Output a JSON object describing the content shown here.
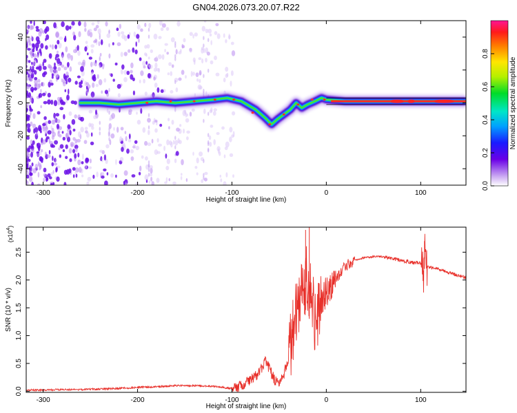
{
  "title": "GN04.2026.073.20.07.R22",
  "chart_data": [
    {
      "type": "heatmap",
      "xlabel": "Height of straight line (km)",
      "ylabel": "Frequency (Hz)",
      "xlim": [
        -318,
        148
      ],
      "ylim": [
        -50,
        50
      ],
      "x_ticks": [
        -300,
        -200,
        -100,
        0,
        100
      ],
      "y_ticks": [
        -40,
        -20,
        0,
        20,
        40
      ],
      "colorbar": {
        "label": "Normalized spectral amplitude",
        "range": [
          0,
          1
        ],
        "ticks": [
          "0.0",
          "0.2",
          "0.4",
          "0.6",
          "0.8"
        ]
      },
      "ridge": {
        "x": [
          -262,
          -240,
          -220,
          -200,
          -180,
          -160,
          -140,
          -120,
          -105,
          -90,
          -75,
          -65,
          -58,
          -52,
          -45,
          -38,
          -32,
          -26,
          -20,
          -12,
          -5,
          0,
          20,
          60,
          100,
          148
        ],
        "y": [
          0,
          0,
          -1,
          0,
          1,
          0,
          1,
          2,
          3,
          1,
          -4,
          -9,
          -13,
          -10,
          -7,
          -4,
          0,
          -3,
          -1,
          1,
          3,
          2,
          1,
          1,
          1,
          1
        ]
      }
    },
    {
      "type": "line",
      "xlabel": "Height of straight line (km)",
      "ylabel": "SNR (10 * v/v)",
      "y_multiplier": "(x10",
      "y_multiplier_exp": "4",
      "y_multiplier_close": ")",
      "xlim": [
        -318,
        148
      ],
      "ylim": [
        -0.02,
        2.95
      ],
      "x_ticks": [
        -300,
        -200,
        -100,
        0,
        100
      ],
      "y_ticks": [
        "0.0",
        "0.5",
        "1.0",
        "1.5",
        "2.0",
        "2.5"
      ],
      "line_color": "#e8302a",
      "series": [
        {
          "x": [
            -318,
            -300,
            -280,
            -260,
            -240,
            -220,
            -200,
            -180,
            -160,
            -140,
            -120,
            -100,
            -90,
            -80,
            -70,
            -65,
            -60,
            -55,
            -50,
            -45,
            -40,
            -35,
            -30,
            -25,
            -20,
            -15,
            -10,
            -5,
            0,
            10,
            20,
            30,
            40,
            50,
            60,
            70,
            80,
            90,
            100,
            103,
            104,
            106,
            110,
            120,
            130,
            140,
            148
          ],
          "y": [
            0.02,
            0.02,
            0.03,
            0.03,
            0.04,
            0.05,
            0.07,
            0.08,
            0.1,
            0.1,
            0.09,
            0.05,
            0.1,
            0.2,
            0.35,
            0.55,
            0.4,
            0.2,
            0.15,
            0.3,
            0.6,
            1.1,
            1.6,
            1.9,
            2.0,
            1.5,
            1.2,
            1.6,
            1.8,
            2.0,
            2.25,
            2.35,
            2.4,
            2.42,
            2.42,
            2.38,
            2.35,
            2.32,
            2.3,
            2.1,
            2.7,
            2.25,
            2.22,
            2.18,
            2.13,
            2.08,
            2.05
          ]
        }
      ]
    }
  ]
}
